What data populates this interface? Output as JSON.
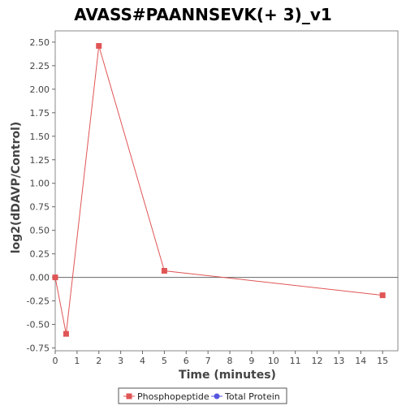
{
  "chart_data": {
    "type": "line",
    "title": "AVASS#PAANNSEVK(+ 3)_v1",
    "xlabel": "Time (minutes)",
    "ylabel": "log2(dDAVP/Control)",
    "xlim": [
      0,
      15.7
    ],
    "ylim": [
      -0.78,
      2.62
    ],
    "x_ticks": [
      0,
      1,
      2,
      3,
      4,
      5,
      6,
      7,
      8,
      9,
      10,
      11,
      12,
      13,
      14,
      15
    ],
    "x_tick_labels": [
      "0",
      "1",
      "2",
      "3",
      "4",
      "5",
      "6",
      "7",
      "8",
      "9",
      "10",
      "11",
      "12",
      "13",
      "14",
      "15"
    ],
    "y_ticks": [
      -0.75,
      -0.5,
      -0.25,
      0.0,
      0.25,
      0.5,
      0.75,
      1.0,
      1.25,
      1.5,
      1.75,
      2.0,
      2.25,
      2.5
    ],
    "y_tick_labels": [
      "-0.75",
      "-0.50",
      "-0.25",
      "0.00",
      "0.25",
      "0.50",
      "0.75",
      "1.00",
      "1.25",
      "1.50",
      "1.75",
      "2.00",
      "2.25",
      "2.50"
    ],
    "zero_line": true,
    "grid": false,
    "legend_position": "bottom",
    "series": [
      {
        "name": "Phosphopeptide",
        "color": "#e05555",
        "marker": "square",
        "x": [
          0,
          0.5,
          2,
          5,
          15
        ],
        "y": [
          0.0,
          -0.6,
          2.46,
          0.07,
          -0.19
        ]
      },
      {
        "name": "Total Protein",
        "color": "#5555e0",
        "marker": "circle",
        "x": [],
        "y": []
      }
    ]
  }
}
